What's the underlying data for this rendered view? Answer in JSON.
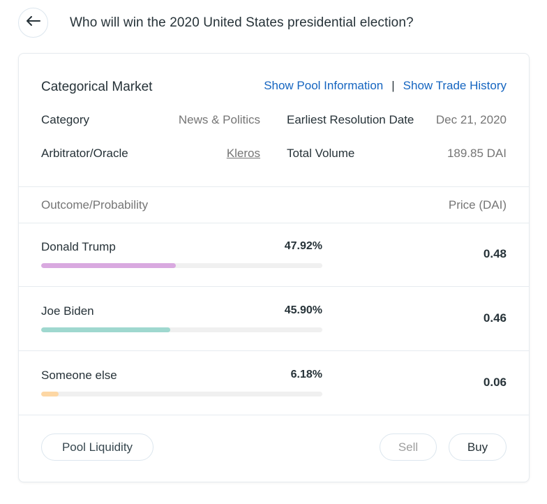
{
  "header": {
    "title": "Who will win the 2020 United States presidential election?",
    "back_icon": "arrow-left-icon"
  },
  "market": {
    "type_label": "Categorical Market",
    "links": {
      "pool_info": "Show Pool Information",
      "separator": "|",
      "trade_history": "Show Trade History"
    },
    "info": {
      "category_label": "Category",
      "category_value": "News & Politics",
      "resolution_label": "Earliest Resolution Date",
      "resolution_value": "Dec 21, 2020",
      "oracle_label": "Arbitrator/Oracle",
      "oracle_value": "Kleros",
      "volume_label": "Total Volume",
      "volume_value": "189.85 DAI"
    }
  },
  "table": {
    "col_outcome": "Outcome/Probability",
    "col_price": "Price (DAI)",
    "rows": [
      {
        "name": "Donald Trump",
        "probability": "47.92%",
        "fraction": 0.4792,
        "price": "0.48",
        "color": "#d9a9e0"
      },
      {
        "name": "Joe Biden",
        "probability": "45.90%",
        "fraction": 0.459,
        "price": "0.46",
        "color": "#9fd8cf"
      },
      {
        "name": "Someone else",
        "probability": "6.18%",
        "fraction": 0.0618,
        "price": "0.06",
        "color": "#fdd7a4"
      }
    ]
  },
  "footer": {
    "pool_liquidity": "Pool Liquidity",
    "sell": "Sell",
    "buy": "Buy"
  }
}
